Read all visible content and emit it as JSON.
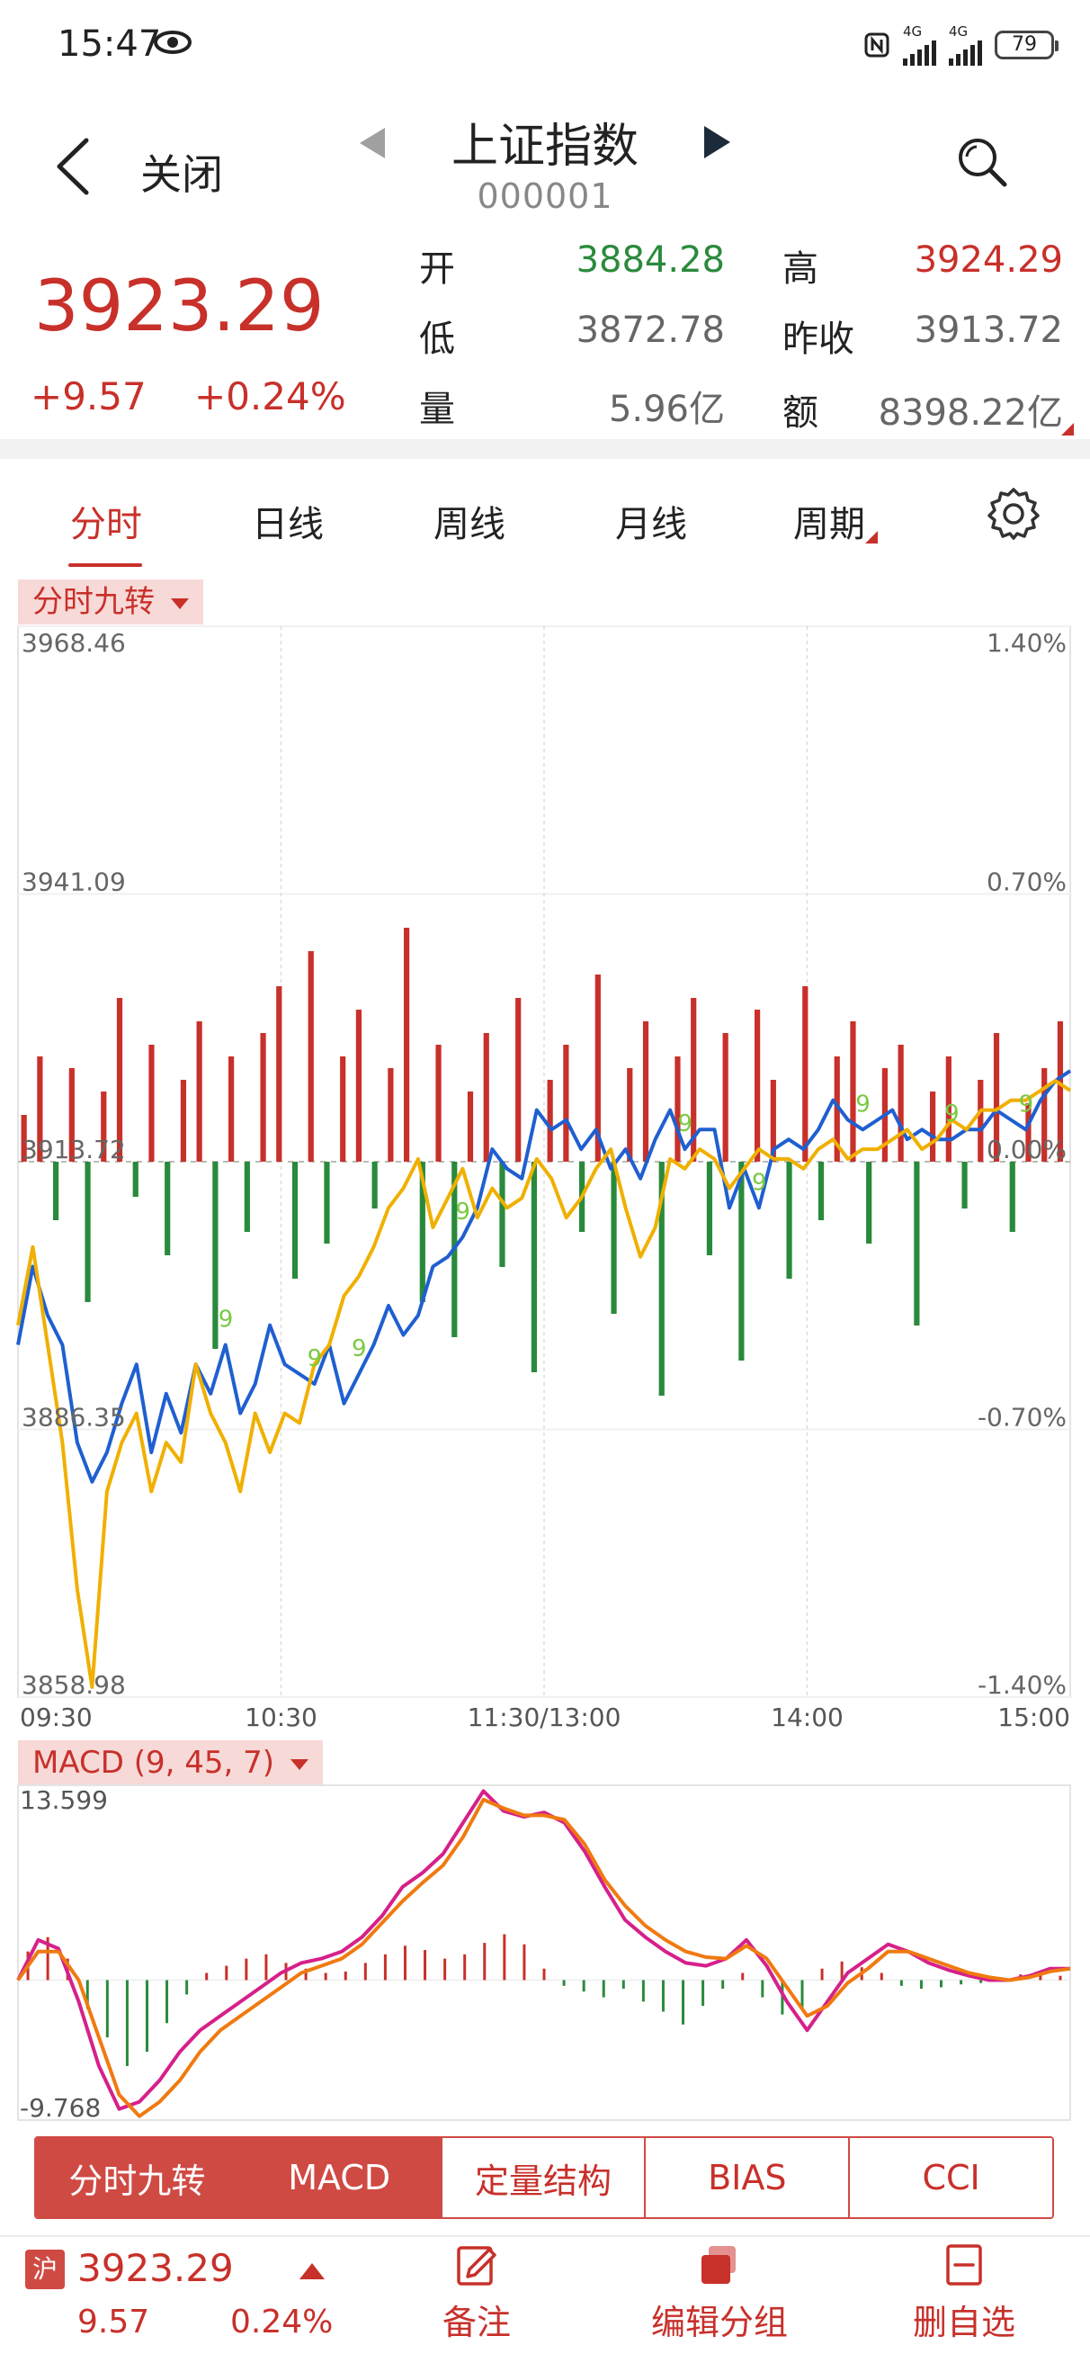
{
  "status": {
    "time": "15:47",
    "net1": "4G",
    "net2": "4G",
    "battery": "79"
  },
  "header": {
    "close_label": "关闭",
    "title": "上证指数",
    "code": "000001"
  },
  "quote": {
    "price": "3923.29",
    "change": "+9.57",
    "change_pct": "+0.24%",
    "open_label": "开",
    "open": "3884.28",
    "high_label": "高",
    "high": "3924.29",
    "low_label": "低",
    "low": "3872.78",
    "prev_label": "昨收",
    "prev_close": "3913.72",
    "vol_label": "量",
    "volume": "5.96亿",
    "amt_label": "额",
    "amount": "8398.22亿"
  },
  "tabs": [
    "分时",
    "日线",
    "周线",
    "月线",
    "周期"
  ],
  "indicator1": {
    "label": "分时九转"
  },
  "indicator2": {
    "label": "MACD (9, 45, 7)"
  },
  "colors": {
    "up": "#c8302a",
    "down": "#2a8a3c",
    "price_line": "#1f5fd0",
    "avg_line": "#f0b000",
    "dif": "#d6208a",
    "dea": "#f07a10"
  },
  "chart_data": [
    {
      "type": "line",
      "title": "分时九转",
      "y_labels_left": [
        "3968.46",
        "3941.09",
        "3913.72",
        "3886.35",
        "3858.98"
      ],
      "y_labels_right": [
        "1.40%",
        "0.70%",
        "0.00%",
        "-0.70%",
        "-1.40%"
      ],
      "x_ticks": [
        "09:30",
        "10:30",
        "11:30/13:00",
        "14:00",
        "15:00"
      ],
      "ylim": [
        3858.98,
        3968.46
      ],
      "prev_close": 3913.72,
      "series": [
        {
          "name": "价格",
          "color": "#1f5fd0",
          "values": [
            3895,
            3903,
            3898,
            3895,
            3885,
            3881,
            3884,
            3889,
            3893,
            3884,
            3890,
            3886,
            3893,
            3890,
            3895,
            3888,
            3891,
            3897,
            3893,
            3892,
            3891,
            3895,
            3889,
            3892,
            3895,
            3899,
            3896,
            3898,
            3903,
            3904,
            3906,
            3909,
            3915,
            3913,
            3912,
            3919,
            3917,
            3918,
            3915,
            3917,
            3913,
            3915,
            3912,
            3916,
            3919,
            3915,
            3917,
            3917,
            3909,
            3913,
            3909,
            3915,
            3916,
            3915,
            3917,
            3920,
            3918,
            3917,
            3918,
            3919,
            3916,
            3917,
            3916,
            3916,
            3917,
            3917,
            3919,
            3918,
            3917,
            3920,
            3922,
            3923
          ]
        },
        {
          "name": "均价",
          "color": "#f0b000",
          "values": [
            3897,
            3905,
            3895,
            3885,
            3870,
            3860,
            3880,
            3885,
            3888,
            3880,
            3885,
            3883,
            3893,
            3888,
            3885,
            3880,
            3888,
            3884,
            3888,
            3887,
            3893,
            3895,
            3900,
            3902,
            3905,
            3909,
            3911,
            3914,
            3907,
            3910,
            3913,
            3908,
            3911,
            3909,
            3910,
            3914,
            3912,
            3908,
            3910,
            3913,
            3915,
            3909,
            3904,
            3907,
            3914,
            3913,
            3915,
            3914,
            3911,
            3913,
            3915,
            3914,
            3914,
            3913,
            3915,
            3916,
            3914,
            3915,
            3915,
            3916,
            3917,
            3915,
            3916,
            3918,
            3917,
            3919,
            3919,
            3920,
            3920,
            3921,
            3922,
            3921
          ]
        }
      ],
      "nine_marks": [
        "9",
        "9",
        "9",
        "9",
        "9",
        "9",
        "9",
        "9",
        "9"
      ],
      "volume_bars": [
        4,
        9,
        -5,
        8,
        -12,
        6,
        14,
        -3,
        10,
        -8,
        7,
        12,
        -16,
        9,
        -6,
        11,
        15,
        -10,
        18,
        -7,
        9,
        13,
        -4,
        8,
        20,
        -12,
        10,
        -15,
        6,
        11,
        -9,
        14,
        -18,
        7,
        10,
        -6,
        16,
        -13,
        8,
        12,
        -20,
        9,
        14,
        -8,
        11,
        -17,
        13,
        7,
        -10,
        15,
        -5,
        9,
        12,
        -7,
        8,
        10,
        -14,
        6,
        9,
        -4,
        7,
        11,
        -6,
        5,
        8,
        12
      ]
    },
    {
      "type": "line",
      "title": "MACD (9, 45, 7)",
      "y_labels": [
        "13.599",
        "-9.768"
      ],
      "ylim": [
        -9.768,
        13.599
      ],
      "series": [
        {
          "name": "DIF",
          "color": "#d6208a",
          "values": [
            0,
            2.8,
            2.2,
            -1.5,
            -6,
            -9,
            -8.5,
            -7,
            -5,
            -3.5,
            -2.5,
            -1.5,
            -0.5,
            0.5,
            1.2,
            1.5,
            2,
            3,
            4.5,
            6.5,
            7.5,
            8.8,
            11,
            13.2,
            11.8,
            11.4,
            11.7,
            11,
            9,
            6.5,
            4.2,
            3,
            2,
            1.2,
            1,
            1.5,
            2.8,
            1,
            -1.5,
            -3.5,
            -1.5,
            0.5,
            1.5,
            2.5,
            2,
            1.2,
            0.7,
            0.3,
            0,
            0,
            0.3,
            0.8,
            0.8
          ]
        },
        {
          "name": "DEA",
          "color": "#f07a10",
          "values": [
            0,
            2,
            2,
            0,
            -4,
            -8,
            -9.5,
            -8.5,
            -7,
            -5,
            -3.5,
            -2.5,
            -1.5,
            -0.5,
            0.5,
            1,
            1.5,
            2.5,
            4,
            5.5,
            6.8,
            8,
            10,
            12.6,
            12,
            11.5,
            11.5,
            11.2,
            9.5,
            7,
            5.2,
            3.8,
            2.8,
            2,
            1.6,
            1.5,
            2.4,
            1.5,
            -0.5,
            -2.5,
            -1.8,
            -0.2,
            0.8,
            2,
            2,
            1.5,
            1,
            0.5,
            0.2,
            0,
            0.2,
            0.6,
            0.8
          ]
        }
      ],
      "histogram": [
        2,
        3,
        1.5,
        -2,
        -4,
        -6,
        -5,
        -3,
        -1,
        0.5,
        1,
        1.5,
        1.8,
        1.2,
        0.8,
        0.5,
        0.6,
        1.2,
        1.8,
        2.4,
        2.1,
        1.5,
        1.8,
        2.6,
        3.2,
        2.5,
        0.8,
        -0.4,
        -0.8,
        -1.2,
        -0.6,
        -1.5,
        -2.2,
        -3.1,
        -1.8,
        -0.6,
        0.5,
        -1.2,
        -2.4,
        -2.1,
        0.8,
        1.3,
        0.9,
        0.5,
        -0.4,
        -0.6,
        -0.5,
        -0.3,
        -0.2,
        0.2,
        0.4,
        0.5,
        0.3
      ]
    }
  ],
  "indicator_buttons": [
    "分时九转",
    "MACD",
    "定量结构",
    "BIAS",
    "CCI"
  ],
  "bottom": {
    "market_badge": "沪",
    "price": "3923.29",
    "change": "9.57",
    "change_pct": "0.24%",
    "note_label": "备注",
    "group_label": "编辑分组",
    "remove_label": "删自选"
  }
}
